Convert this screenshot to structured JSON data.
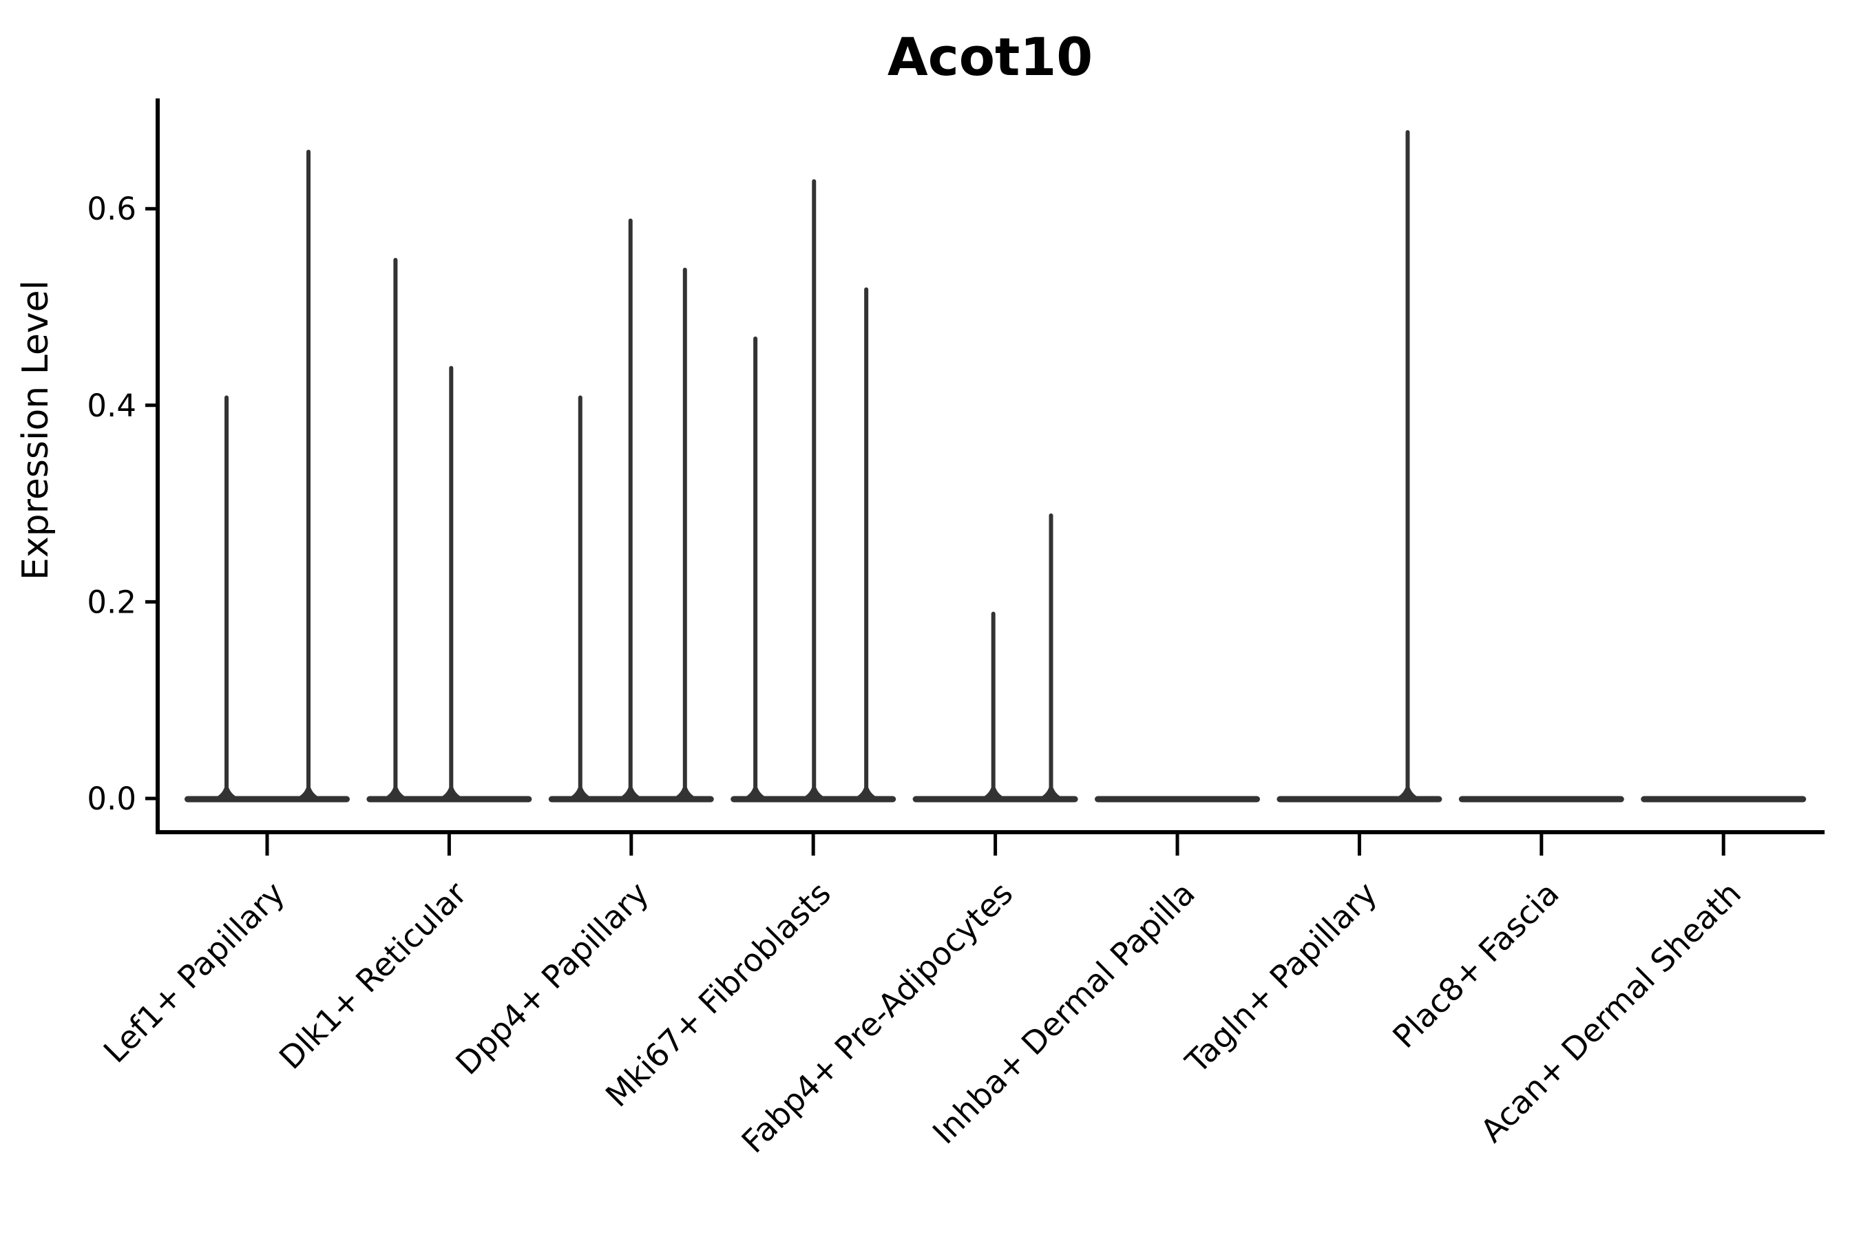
{
  "chart_data": {
    "type": "violin",
    "title": "Acot10",
    "xlabel": "",
    "ylabel": "Expression Level",
    "legend": "none",
    "grid": false,
    "background": "#ffffff",
    "ylim": [
      -0.033,
      0.712
    ],
    "ytick_values": [
      0.0,
      0.2,
      0.4,
      0.6
    ],
    "ytick_labels": [
      "0.0",
      "0.2",
      "0.4",
      "0.6"
    ],
    "categories": [
      "Lef1+ Papillary",
      "Dlk1+ Reticular",
      "Dpp4+ Papillary",
      "Mki67+ Fibroblasts",
      "Fabp4+ Pre-Adipocytes",
      "Inhba+ Dermal Papilla",
      "Tagln+ Papillary",
      "Plac8+ Fascia",
      "Acan+ Dermal Sheath"
    ],
    "violins": [
      {
        "category": "Lef1+ Papillary",
        "baseline_value": 0.0,
        "spikes": [
          {
            "dx_frac": -0.223,
            "max": 0.41
          },
          {
            "dx_frac": 0.227,
            "max": 0.66
          }
        ]
      },
      {
        "category": "Dlk1+ Reticular",
        "baseline_value": 0.0,
        "spikes": [
          {
            "dx_frac": -0.295,
            "max": 0.55
          },
          {
            "dx_frac": 0.011,
            "max": 0.44
          }
        ]
      },
      {
        "category": "Dpp4+ Papillary",
        "baseline_value": 0.0,
        "spikes": [
          {
            "dx_frac": -0.28,
            "max": 0.41
          },
          {
            "dx_frac": -0.004,
            "max": 0.59
          },
          {
            "dx_frac": 0.295,
            "max": 0.54
          }
        ]
      },
      {
        "category": "Mki67+ Fibroblasts",
        "baseline_value": 0.0,
        "spikes": [
          {
            "dx_frac": -0.318,
            "max": 0.47
          },
          {
            "dx_frac": 0.004,
            "max": 0.63
          },
          {
            "dx_frac": 0.291,
            "max": 0.52
          }
        ]
      },
      {
        "category": "Fabp4+ Pre-Adipocytes",
        "baseline_value": 0.0,
        "spikes": [
          {
            "dx_frac": -0.011,
            "max": 0.19
          },
          {
            "dx_frac": 0.306,
            "max": 0.29
          }
        ]
      },
      {
        "category": "Inhba+ Dermal Papilla",
        "baseline_value": 0.0,
        "spikes": []
      },
      {
        "category": "Tagln+ Papillary",
        "baseline_value": 0.0,
        "spikes": [
          {
            "dx_frac": 0.265,
            "max": 0.68
          }
        ]
      },
      {
        "category": "Plac8+ Fascia",
        "baseline_value": 0.0,
        "spikes": []
      },
      {
        "category": "Acan+ Dermal Sheath",
        "baseline_value": 0.0,
        "spikes": []
      }
    ],
    "colors": {
      "violin": "#333333",
      "axis": "#000000",
      "text": "#000000",
      "background": "#ffffff"
    }
  }
}
